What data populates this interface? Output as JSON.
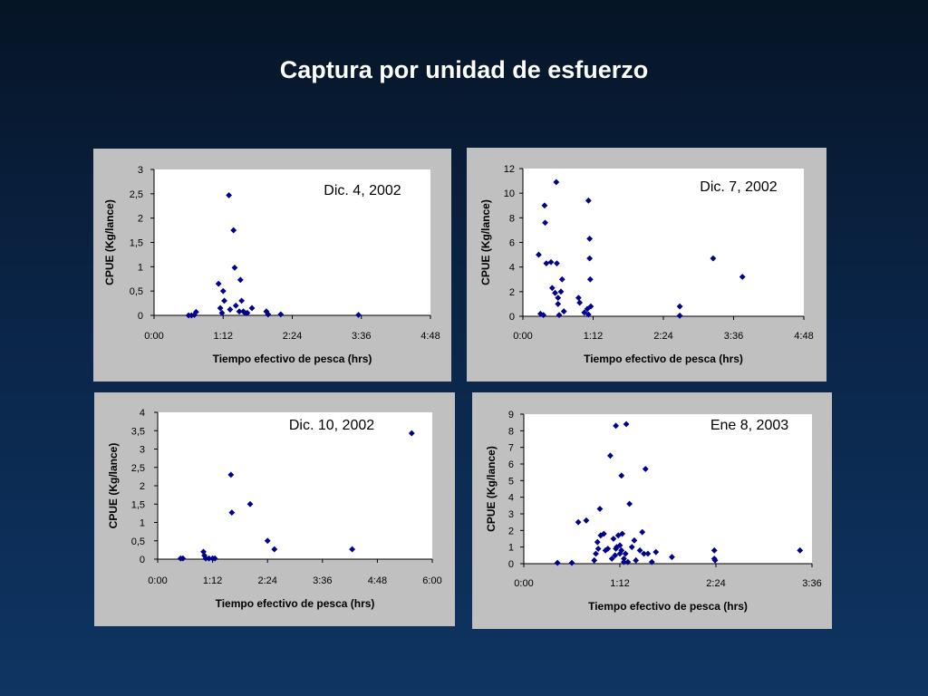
{
  "slide": {
    "title": "Captura por unidad de esfuerzo"
  },
  "colors": {
    "marker": "#00008b",
    "panel_bg": "#c0c0c0",
    "plot_bg": "#ffffff",
    "title_text": "#ffffff"
  },
  "chart_data": [
    {
      "type": "scatter",
      "title": "Dic. 4, 2002",
      "xlabel": "Tiempo efectivo de pesca (hrs)",
      "ylabel": "CPUE (Kg/lance)",
      "xlim": [
        0,
        4.8
      ],
      "ylim": [
        0,
        3
      ],
      "x_ticks": [
        0,
        1.2,
        2.4,
        3.6,
        4.8
      ],
      "x_tick_labels": [
        "0:00",
        "1:12",
        "2:24",
        "3:36",
        "4:48"
      ],
      "y_ticks": [
        0,
        0.5,
        1,
        1.5,
        2,
        2.5,
        3
      ],
      "y_tick_labels": [
        "0",
        "0,5",
        "1",
        "1,5",
        "2",
        "2,5",
        "3"
      ],
      "points": [
        [
          0.6,
          0.0
        ],
        [
          0.65,
          0.0
        ],
        [
          0.7,
          0.01
        ],
        [
          0.73,
          0.07
        ],
        [
          1.12,
          0.65
        ],
        [
          1.15,
          0.15
        ],
        [
          1.18,
          0.05
        ],
        [
          1.2,
          0.5
        ],
        [
          1.22,
          0.3
        ],
        [
          1.3,
          2.47
        ],
        [
          1.32,
          0.12
        ],
        [
          1.38,
          1.75
        ],
        [
          1.4,
          0.98
        ],
        [
          1.42,
          0.2
        ],
        [
          1.48,
          0.08
        ],
        [
          1.5,
          0.73
        ],
        [
          1.52,
          0.3
        ],
        [
          1.55,
          0.08
        ],
        [
          1.58,
          0.05
        ],
        [
          1.62,
          0.05
        ],
        [
          1.7,
          0.15
        ],
        [
          1.95,
          0.08
        ],
        [
          1.98,
          0.02
        ],
        [
          2.2,
          0.02
        ],
        [
          3.55,
          0.01
        ]
      ]
    },
    {
      "type": "scatter",
      "title": "Dic. 7, 2002",
      "xlabel": "Tiempo efectivo de pesca (hrs)",
      "ylabel": "CPUE (Kg/lance)",
      "xlim": [
        0,
        4.8
      ],
      "ylim": [
        0,
        12
      ],
      "x_ticks": [
        0,
        1.2,
        2.4,
        3.6,
        4.8
      ],
      "x_tick_labels": [
        "0:00",
        "1:12",
        "2:24",
        "3:36",
        "4:48"
      ],
      "y_ticks": [
        0,
        2,
        4,
        6,
        8,
        10,
        12
      ],
      "y_tick_labels": [
        "0",
        "2",
        "4",
        "6",
        "8",
        "10",
        "12"
      ],
      "points": [
        [
          0.27,
          5.0
        ],
        [
          0.3,
          0.2
        ],
        [
          0.35,
          0.1
        ],
        [
          0.37,
          9.0
        ],
        [
          0.38,
          7.6
        ],
        [
          0.4,
          4.3
        ],
        [
          0.48,
          4.4
        ],
        [
          0.5,
          2.3
        ],
        [
          0.55,
          1.9
        ],
        [
          0.57,
          10.9
        ],
        [
          0.58,
          4.3
        ],
        [
          0.6,
          1.5
        ],
        [
          0.6,
          1.0
        ],
        [
          0.62,
          0.1
        ],
        [
          0.65,
          2.0
        ],
        [
          0.67,
          3.0
        ],
        [
          0.7,
          0.4
        ],
        [
          0.95,
          1.5
        ],
        [
          0.97,
          1.1
        ],
        [
          1.05,
          0.3
        ],
        [
          1.1,
          0.6
        ],
        [
          1.12,
          0.15
        ],
        [
          1.12,
          9.4
        ],
        [
          1.14,
          6.3
        ],
        [
          1.14,
          4.7
        ],
        [
          1.15,
          3.0
        ],
        [
          1.16,
          0.8
        ],
        [
          2.68,
          0.8
        ],
        [
          2.68,
          0.05
        ],
        [
          3.25,
          4.7
        ],
        [
          3.75,
          3.2
        ]
      ]
    },
    {
      "type": "scatter",
      "title": "Dic. 10, 2002",
      "xlabel": "Tiempo efectivo de pesca (hrs)",
      "ylabel": "CPUE (Kg/lance)",
      "xlim": [
        0,
        6
      ],
      "ylim": [
        0,
        4
      ],
      "x_ticks": [
        0,
        1.2,
        2.4,
        3.6,
        4.8,
        6
      ],
      "x_tick_labels": [
        "0:00",
        "1:12",
        "2:24",
        "3:36",
        "4:48",
        "6:00"
      ],
      "y_ticks": [
        0,
        0.5,
        1,
        1.5,
        2,
        2.5,
        3,
        3.5,
        4
      ],
      "y_tick_labels": [
        "0",
        "0,5",
        "1",
        "1,5",
        "2",
        "2,5",
        "3",
        "3,5",
        "4"
      ],
      "points": [
        [
          0.5,
          0.02
        ],
        [
          0.55,
          0.02
        ],
        [
          1.0,
          0.2
        ],
        [
          1.02,
          0.1
        ],
        [
          1.05,
          0.02
        ],
        [
          1.12,
          0.02
        ],
        [
          1.2,
          0.02
        ],
        [
          1.25,
          0.02
        ],
        [
          1.6,
          2.3
        ],
        [
          1.62,
          1.27
        ],
        [
          2.02,
          1.5
        ],
        [
          2.4,
          0.5
        ],
        [
          2.55,
          0.27
        ],
        [
          4.25,
          0.27
        ],
        [
          5.55,
          3.43
        ]
      ]
    },
    {
      "type": "scatter",
      "title": "Ene 8, 2003",
      "xlabel": "Tiempo efectivo de pesca (hrs)",
      "ylabel": "CPUE (Kg/lance)",
      "xlim": [
        0,
        3.6
      ],
      "ylim": [
        0,
        9
      ],
      "x_ticks": [
        0,
        1.2,
        2.4,
        3.6
      ],
      "x_tick_labels": [
        "0:00",
        "1:12",
        "2:24",
        "3:36"
      ],
      "y_ticks": [
        0,
        1,
        2,
        3,
        4,
        5,
        6,
        7,
        8,
        9
      ],
      "y_tick_labels": [
        "0",
        "1",
        "2",
        "3",
        "4",
        "5",
        "6",
        "7",
        "8",
        "9"
      ],
      "points": [
        [
          0.42,
          0.05
        ],
        [
          0.6,
          0.05
        ],
        [
          0.68,
          2.5
        ],
        [
          0.78,
          2.6
        ],
        [
          0.88,
          0.2
        ],
        [
          0.9,
          0.6
        ],
        [
          0.92,
          1.3
        ],
        [
          0.93,
          0.9
        ],
        [
          0.95,
          3.3
        ],
        [
          0.96,
          1.7
        ],
        [
          1.0,
          1.8
        ],
        [
          1.02,
          0.8
        ],
        [
          1.05,
          0.9
        ],
        [
          1.08,
          6.5
        ],
        [
          1.1,
          0.3
        ],
        [
          1.12,
          1.5
        ],
        [
          1.14,
          0.5
        ],
        [
          1.15,
          0.9
        ],
        [
          1.15,
          8.3
        ],
        [
          1.16,
          1.0
        ],
        [
          1.18,
          1.7
        ],
        [
          1.2,
          0.6
        ],
        [
          1.2,
          1.1
        ],
        [
          1.22,
          5.3
        ],
        [
          1.22,
          0.8
        ],
        [
          1.23,
          1.8
        ],
        [
          1.25,
          0.3
        ],
        [
          1.25,
          0.1
        ],
        [
          1.27,
          0.6
        ],
        [
          1.28,
          8.4
        ],
        [
          1.3,
          0.1
        ],
        [
          1.32,
          3.6
        ],
        [
          1.35,
          1.0
        ],
        [
          1.38,
          1.4
        ],
        [
          1.4,
          0.2
        ],
        [
          1.45,
          0.8
        ],
        [
          1.48,
          1.9
        ],
        [
          1.5,
          0.6
        ],
        [
          1.52,
          5.7
        ],
        [
          1.55,
          0.6
        ],
        [
          1.6,
          0.1
        ],
        [
          1.65,
          0.7
        ],
        [
          1.85,
          0.4
        ],
        [
          2.38,
          0.8
        ],
        [
          2.38,
          0.3
        ],
        [
          2.39,
          0.2
        ],
        [
          3.45,
          0.8
        ]
      ]
    }
  ]
}
